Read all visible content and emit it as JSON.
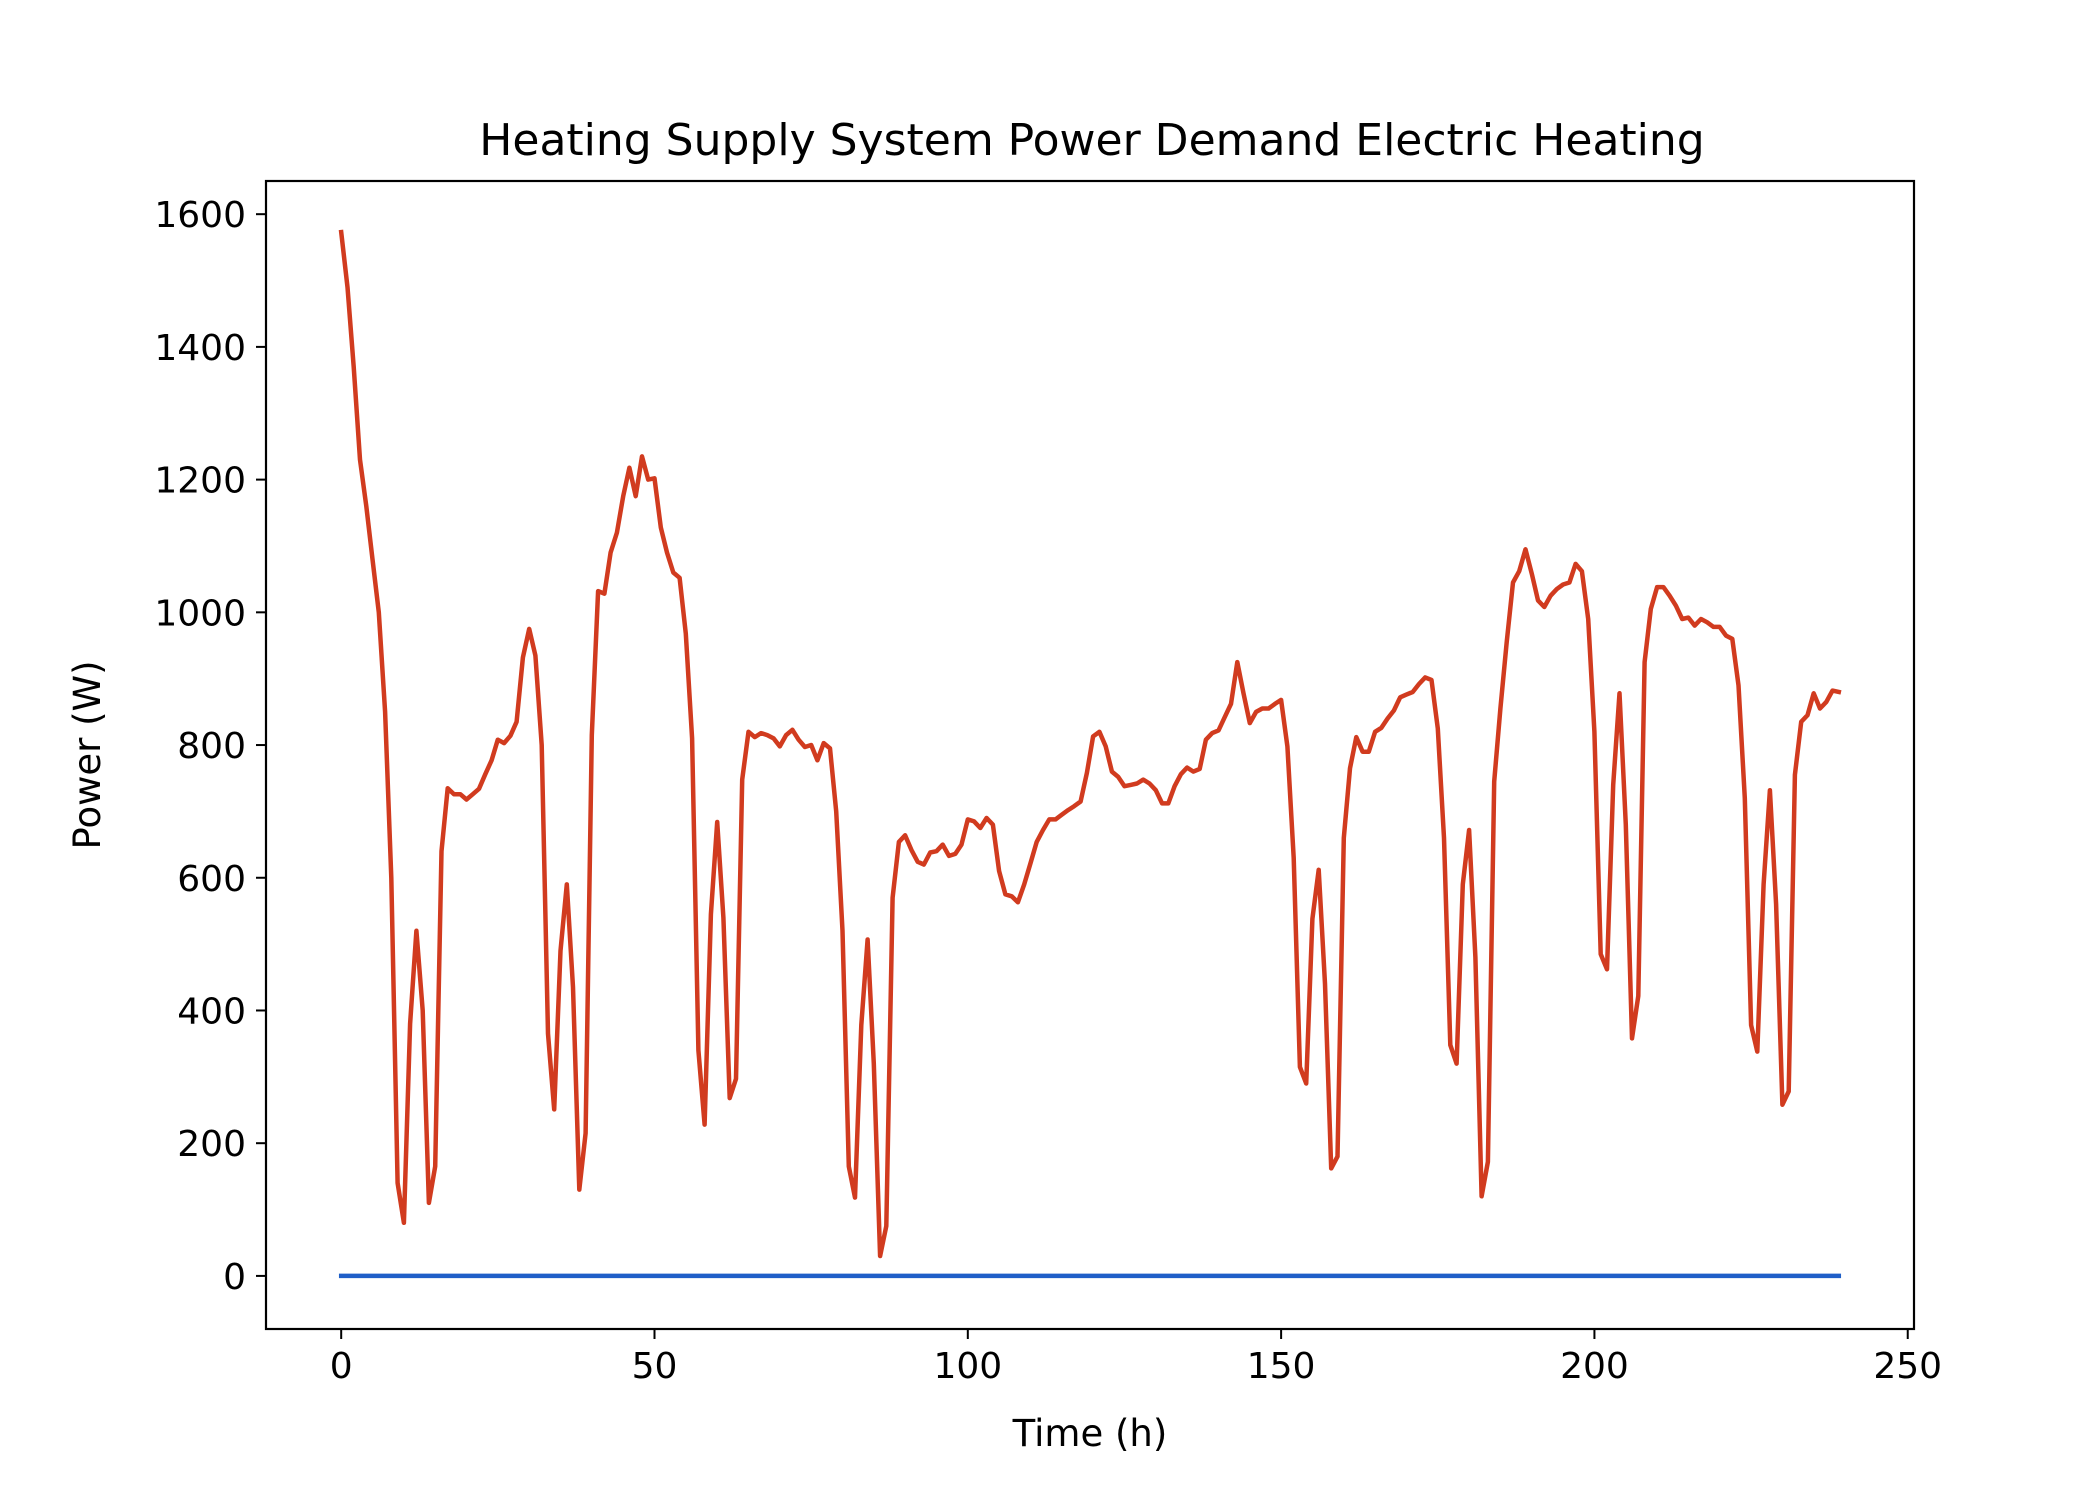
{
  "chart_data": {
    "type": "line",
    "title": "Heating Supply System Power Demand Electric Heating",
    "xlabel": "Time (h)",
    "ylabel": "Power (W)",
    "xlim": [
      -12,
      251
    ],
    "ylim": [
      -80,
      1650
    ],
    "xticks": [
      0,
      50,
      100,
      150,
      200,
      250
    ],
    "yticks": [
      0,
      200,
      400,
      600,
      800,
      1000,
      1200,
      1400,
      1600
    ],
    "grid": false,
    "legend": "none",
    "series": [
      {
        "color": "#d13b1f",
        "points": [
          [
            0,
            1573
          ],
          [
            1,
            1490
          ],
          [
            2,
            1370
          ],
          [
            3,
            1230
          ],
          [
            4,
            1160
          ],
          [
            5,
            1080
          ],
          [
            6,
            1000
          ],
          [
            7,
            850
          ],
          [
            8,
            600
          ],
          [
            9,
            140
          ],
          [
            10,
            80
          ],
          [
            11,
            380
          ],
          [
            12,
            520
          ],
          [
            13,
            400
          ],
          [
            14,
            110
          ],
          [
            15,
            165
          ],
          [
            16,
            640
          ],
          [
            17,
            735
          ],
          [
            18,
            726
          ],
          [
            19,
            726
          ],
          [
            20,
            718
          ],
          [
            21,
            726
          ],
          [
            22,
            734
          ],
          [
            23,
            756
          ],
          [
            24,
            777
          ],
          [
            25,
            808
          ],
          [
            26,
            803
          ],
          [
            27,
            814
          ],
          [
            28,
            835
          ],
          [
            29,
            932
          ],
          [
            30,
            975
          ],
          [
            31,
            935
          ],
          [
            32,
            800
          ],
          [
            33,
            365
          ],
          [
            34,
            251
          ],
          [
            35,
            490
          ],
          [
            36,
            590
          ],
          [
            37,
            435
          ],
          [
            38,
            130
          ],
          [
            39,
            215
          ],
          [
            40,
            815
          ],
          [
            41,
            1032
          ],
          [
            42,
            1028
          ],
          [
            43,
            1090
          ],
          [
            44,
            1120
          ],
          [
            45,
            1175
          ],
          [
            46,
            1218
          ],
          [
            47,
            1175
          ],
          [
            48,
            1235
          ],
          [
            49,
            1200
          ],
          [
            50,
            1202
          ],
          [
            51,
            1128
          ],
          [
            52,
            1090
          ],
          [
            53,
            1060
          ],
          [
            54,
            1052
          ],
          [
            55,
            968
          ],
          [
            56,
            810
          ],
          [
            57,
            340
          ],
          [
            58,
            228
          ],
          [
            59,
            545
          ],
          [
            60,
            684
          ],
          [
            61,
            540
          ],
          [
            62,
            268
          ],
          [
            63,
            297
          ],
          [
            64,
            748
          ],
          [
            65,
            820
          ],
          [
            66,
            812
          ],
          [
            67,
            818
          ],
          [
            68,
            815
          ],
          [
            69,
            810
          ],
          [
            70,
            798
          ],
          [
            71,
            815
          ],
          [
            72,
            823
          ],
          [
            73,
            808
          ],
          [
            74,
            797
          ],
          [
            75,
            800
          ],
          [
            76,
            777
          ],
          [
            77,
            803
          ],
          [
            78,
            795
          ],
          [
            79,
            700
          ],
          [
            80,
            520
          ],
          [
            81,
            165
          ],
          [
            82,
            118
          ],
          [
            83,
            378
          ],
          [
            84,
            507
          ],
          [
            85,
            320
          ],
          [
            86,
            30
          ],
          [
            87,
            75
          ],
          [
            88,
            570
          ],
          [
            89,
            654
          ],
          [
            90,
            664
          ],
          [
            91,
            642
          ],
          [
            92,
            624
          ],
          [
            93,
            620
          ],
          [
            94,
            638
          ],
          [
            95,
            640
          ],
          [
            96,
            650
          ],
          [
            97,
            633
          ],
          [
            98,
            636
          ],
          [
            99,
            650
          ],
          [
            100,
            688
          ],
          [
            101,
            685
          ],
          [
            102,
            675
          ],
          [
            103,
            690
          ],
          [
            104,
            680
          ],
          [
            105,
            610
          ],
          [
            106,
            575
          ],
          [
            107,
            572
          ],
          [
            108,
            563
          ],
          [
            109,
            590
          ],
          [
            110,
            622
          ],
          [
            111,
            654
          ],
          [
            112,
            672
          ],
          [
            113,
            688
          ],
          [
            114,
            688
          ],
          [
            115,
            695
          ],
          [
            116,
            702
          ],
          [
            117,
            708
          ],
          [
            118,
            715
          ],
          [
            119,
            758
          ],
          [
            120,
            813
          ],
          [
            121,
            820
          ],
          [
            122,
            798
          ],
          [
            123,
            760
          ],
          [
            124,
            752
          ],
          [
            125,
            738
          ],
          [
            126,
            740
          ],
          [
            127,
            742
          ],
          [
            128,
            748
          ],
          [
            129,
            742
          ],
          [
            130,
            732
          ],
          [
            131,
            712
          ],
          [
            132,
            712
          ],
          [
            133,
            738
          ],
          [
            134,
            756
          ],
          [
            135,
            766
          ],
          [
            136,
            760
          ],
          [
            137,
            764
          ],
          [
            138,
            808
          ],
          [
            139,
            818
          ],
          [
            140,
            822
          ],
          [
            141,
            842
          ],
          [
            142,
            862
          ],
          [
            143,
            925
          ],
          [
            144,
            878
          ],
          [
            145,
            833
          ],
          [
            146,
            850
          ],
          [
            147,
            855
          ],
          [
            148,
            855
          ],
          [
            149,
            862
          ],
          [
            150,
            868
          ],
          [
            151,
            798
          ],
          [
            152,
            630
          ],
          [
            153,
            315
          ],
          [
            154,
            290
          ],
          [
            155,
            538
          ],
          [
            156,
            612
          ],
          [
            157,
            440
          ],
          [
            158,
            162
          ],
          [
            159,
            180
          ],
          [
            160,
            660
          ],
          [
            161,
            765
          ],
          [
            162,
            812
          ],
          [
            163,
            790
          ],
          [
            164,
            790
          ],
          [
            165,
            820
          ],
          [
            166,
            826
          ],
          [
            167,
            840
          ],
          [
            168,
            852
          ],
          [
            169,
            872
          ],
          [
            170,
            876
          ],
          [
            171,
            880
          ],
          [
            172,
            892
          ],
          [
            173,
            902
          ],
          [
            174,
            898
          ],
          [
            175,
            825
          ],
          [
            176,
            660
          ],
          [
            177,
            348
          ],
          [
            178,
            320
          ],
          [
            179,
            590
          ],
          [
            180,
            672
          ],
          [
            181,
            480
          ],
          [
            182,
            120
          ],
          [
            183,
            172
          ],
          [
            184,
            745
          ],
          [
            185,
            855
          ],
          [
            186,
            955
          ],
          [
            187,
            1045
          ],
          [
            188,
            1062
          ],
          [
            189,
            1095
          ],
          [
            190,
            1058
          ],
          [
            191,
            1018
          ],
          [
            192,
            1008
          ],
          [
            193,
            1025
          ],
          [
            194,
            1035
          ],
          [
            195,
            1042
          ],
          [
            196,
            1045
          ],
          [
            197,
            1073
          ],
          [
            198,
            1062
          ],
          [
            199,
            990
          ],
          [
            200,
            820
          ],
          [
            201,
            485
          ],
          [
            202,
            462
          ],
          [
            203,
            740
          ],
          [
            204,
            878
          ],
          [
            205,
            680
          ],
          [
            206,
            358
          ],
          [
            207,
            422
          ],
          [
            208,
            925
          ],
          [
            209,
            1005
          ],
          [
            210,
            1038
          ],
          [
            211,
            1038
          ],
          [
            212,
            1025
          ],
          [
            213,
            1010
          ],
          [
            214,
            990
          ],
          [
            215,
            992
          ],
          [
            216,
            980
          ],
          [
            217,
            990
          ],
          [
            218,
            985
          ],
          [
            219,
            978
          ],
          [
            220,
            978
          ],
          [
            221,
            965
          ],
          [
            222,
            960
          ],
          [
            223,
            890
          ],
          [
            224,
            720
          ],
          [
            225,
            378
          ],
          [
            226,
            338
          ],
          [
            227,
            590
          ],
          [
            228,
            732
          ],
          [
            229,
            560
          ],
          [
            230,
            258
          ],
          [
            231,
            278
          ],
          [
            232,
            755
          ],
          [
            233,
            835
          ],
          [
            234,
            845
          ],
          [
            235,
            878
          ],
          [
            236,
            855
          ],
          [
            237,
            865
          ],
          [
            238,
            882
          ],
          [
            239,
            880
          ]
        ]
      },
      {
        "color": "#1f5fc8",
        "points": [
          [
            0,
            0
          ],
          [
            239,
            0
          ]
        ]
      }
    ]
  }
}
